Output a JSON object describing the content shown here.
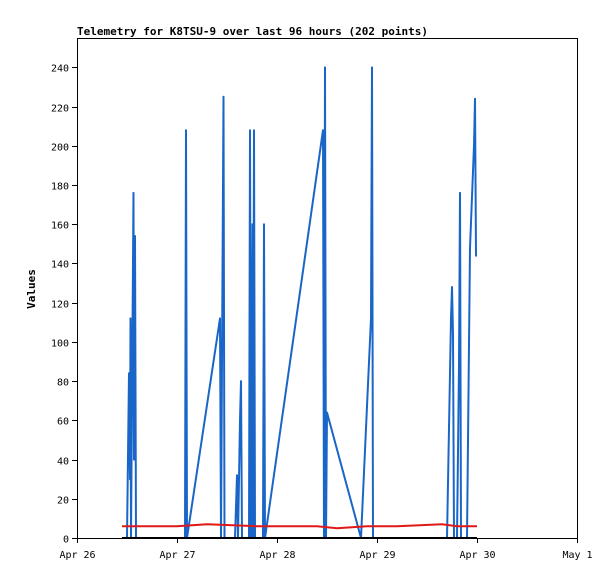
{
  "chart_data": {
    "type": "line",
    "title": "Telemetry for K8TSU-9 over last 96 hours (202 points)",
    "ylabel": "Values",
    "xlabel": "",
    "xlim": [
      0,
      5
    ],
    "ylim": [
      0,
      255
    ],
    "x_ticks": [
      {
        "value": 0,
        "label": "Apr 26"
      },
      {
        "value": 1,
        "label": "Apr 27"
      },
      {
        "value": 2,
        "label": "Apr 28"
      },
      {
        "value": 3,
        "label": "Apr 29"
      },
      {
        "value": 4,
        "label": "Apr 30"
      },
      {
        "value": 5,
        "label": "May 1"
      }
    ],
    "y_ticks": [
      0,
      20,
      40,
      60,
      80,
      100,
      120,
      140,
      160,
      180,
      200,
      220,
      240
    ],
    "grid": false,
    "series": [
      {
        "color": "#1a66c8",
        "points": [
          [
            0.5,
            0
          ],
          [
            0.52,
            84
          ],
          [
            0.53,
            30
          ],
          [
            0.535,
            112
          ],
          [
            0.54,
            0
          ],
          [
            0.565,
            176
          ],
          [
            0.57,
            40
          ],
          [
            0.58,
            154
          ],
          [
            0.59,
            0
          ],
          [
            0.6,
            0
          ],
          [
            1.08,
            0
          ],
          [
            1.09,
            208
          ],
          [
            1.1,
            0
          ],
          [
            1.43,
            112
          ],
          [
            1.44,
            0
          ],
          [
            1.465,
            225
          ],
          [
            1.475,
            0
          ],
          [
            1.58,
            0
          ],
          [
            1.6,
            32
          ],
          [
            1.61,
            0
          ],
          [
            1.63,
            60
          ],
          [
            1.64,
            80
          ],
          [
            1.65,
            0
          ],
          [
            1.72,
            0
          ],
          [
            1.73,
            208
          ],
          [
            1.74,
            0
          ],
          [
            1.755,
            160
          ],
          [
            1.76,
            0
          ],
          [
            1.77,
            208
          ],
          [
            1.78,
            0
          ],
          [
            1.86,
            0
          ],
          [
            1.87,
            160
          ],
          [
            1.88,
            0
          ],
          [
            2.46,
            208
          ],
          [
            2.47,
            0
          ],
          [
            2.48,
            240
          ],
          [
            2.49,
            0
          ],
          [
            2.5,
            64
          ],
          [
            2.84,
            0
          ],
          [
            2.94,
            112
          ],
          [
            2.95,
            240
          ],
          [
            2.96,
            0
          ],
          [
            3.7,
            0
          ],
          [
            3.74,
            112
          ],
          [
            3.75,
            128
          ],
          [
            3.76,
            104
          ],
          [
            3.77,
            0
          ],
          [
            3.8,
            0
          ],
          [
            3.82,
            88
          ],
          [
            3.83,
            176
          ],
          [
            3.84,
            0
          ],
          [
            3.86,
            0
          ],
          [
            3.9,
            0
          ],
          [
            3.93,
            148
          ],
          [
            3.97,
            200
          ],
          [
            3.98,
            224
          ],
          [
            3.99,
            144
          ],
          [
            4.0,
            144
          ]
        ]
      },
      {
        "color": "#e01818",
        "points": [
          [
            0.45,
            6
          ],
          [
            1.0,
            6
          ],
          [
            1.3,
            7
          ],
          [
            1.8,
            6
          ],
          [
            2.4,
            6
          ],
          [
            2.6,
            5
          ],
          [
            2.9,
            6
          ],
          [
            3.2,
            6
          ],
          [
            3.65,
            7
          ],
          [
            3.8,
            6
          ],
          [
            4.0,
            6
          ]
        ]
      },
      {
        "color": "#000000",
        "points": [
          [
            0.45,
            0
          ],
          [
            4.0,
            0
          ]
        ]
      }
    ]
  }
}
